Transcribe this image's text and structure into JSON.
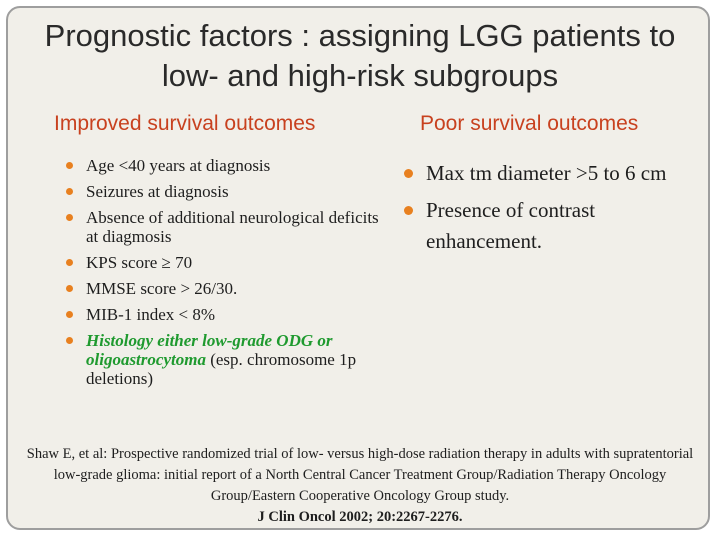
{
  "title_line1": "Prognostic factors : assigning LGG patients to",
  "title_line2": "low- and high-risk subgroups",
  "left_heading": "Improved  survival outcomes",
  "right_heading": "Poor survival outcomes",
  "left_items": [
    "Age <40 years at diagnosis",
    "Seizures at diagnosis",
    "Absence of additional neurological deficits at diagmosis",
    "KPS score ≥ 70",
    "MMSE score > 26/30.",
    "MIB-1 index < 8%"
  ],
  "left_last_item": {
    "highlight": "Histology either low-grade ODG  or oligoastrocytoma",
    "rest": " (esp. chromosome 1p deletions)"
  },
  "right_items": [
    "Max tm diameter >5 to 6 cm",
    "Presence of contrast enhancement."
  ],
  "reference": {
    "citation": "Shaw E, et al: Prospective randomized trial of low- versus high-dose radiation therapy in adults with supratentorial low-grade glioma: initial report of a North Central Cancer Treatment Group/Radiation Therapy Oncology Group/Eastern Cooperative Oncology Group study.",
    "journal": "J Clin Oncol  2002; 20:2267-2276."
  },
  "colors": {
    "accent": "#c8411f",
    "bullet": "#e8801f",
    "highlight": "#1f9a2f"
  }
}
